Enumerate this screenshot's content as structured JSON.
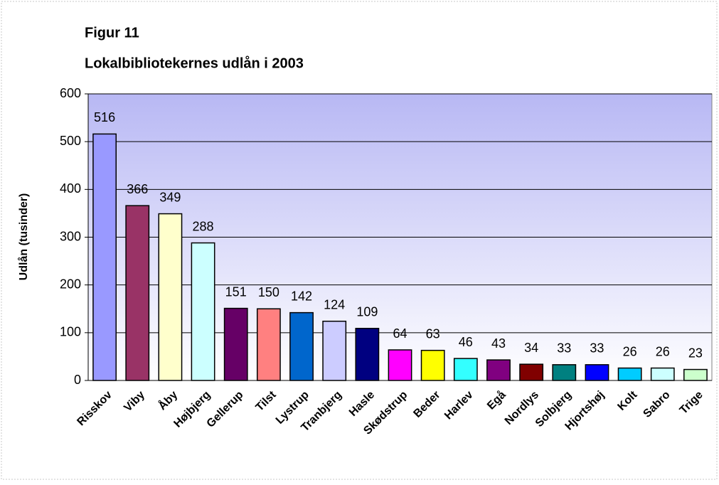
{
  "chart_data": {
    "type": "bar",
    "title": "Figur 11",
    "subtitle": "Lokalbibliotekernes udlån i 2003",
    "y_label": "Udlån  (tusinder)",
    "categories": [
      "Risskov",
      "Viby",
      "Åby",
      "Højbjerg",
      "Gellerup",
      "Tilst",
      "Lystrup",
      "Tranbjerg",
      "Hasle",
      "Skødstrup",
      "Beder",
      "Harlev",
      "Egå",
      "Nordlys",
      "Solbjerg",
      "Hjortshøj",
      "Kolt",
      "Sabro",
      "Trige"
    ],
    "values": [
      516,
      366,
      349,
      288,
      151,
      150,
      142,
      124,
      109,
      64,
      63,
      46,
      43,
      34,
      33,
      33,
      26,
      26,
      23
    ],
    "colors": [
      "#9999ff",
      "#993366",
      "#ffffcc",
      "#ccffff",
      "#660066",
      "#ff8080",
      "#0066cc",
      "#ccccff",
      "#000080",
      "#ff00ff",
      "#ffff00",
      "#33ffff",
      "#800080",
      "#800000",
      "#008080",
      "#0000ff",
      "#00ccff",
      "#ccffff",
      "#ccffcc"
    ],
    "ylim": [
      0,
      600
    ],
    "yticks": [
      0,
      100,
      200,
      300,
      400,
      500,
      600
    ],
    "grid": true
  }
}
